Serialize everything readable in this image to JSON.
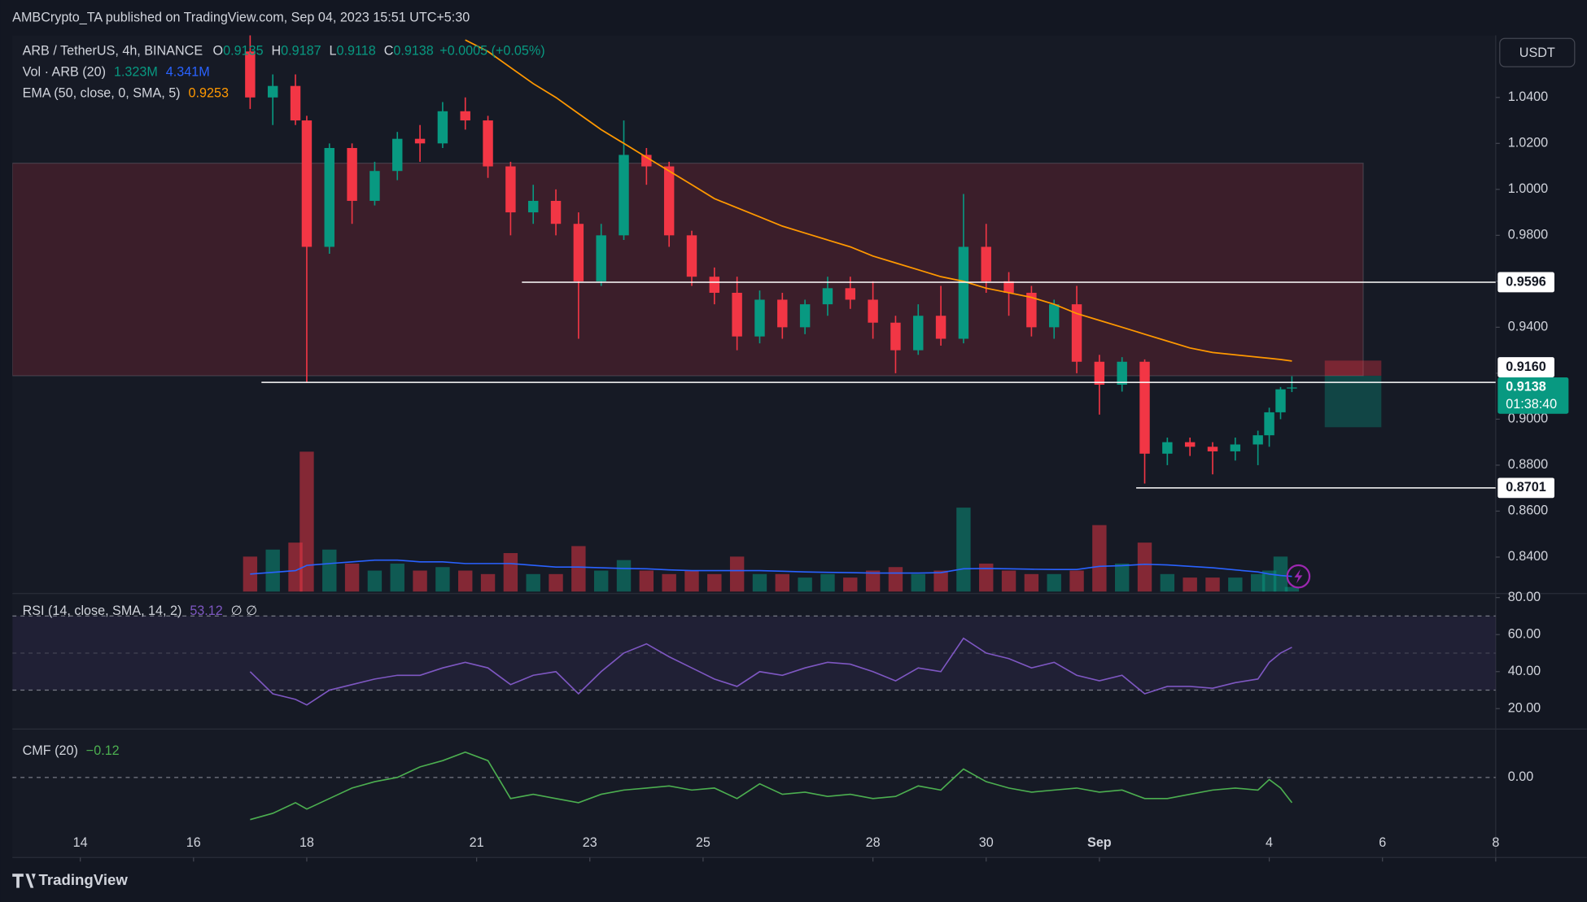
{
  "header": {
    "text": "AMBCrypto_TA published on TradingView.com, Sep 04, 2023 15:51 UTC+5:30"
  },
  "footer": {
    "logo": "TradingView"
  },
  "chart_data": {
    "type": "candlestick",
    "symbol": "ARB / TetherUS, 4h, BINANCE",
    "currency": "USDT",
    "ohlc_legend": {
      "open_label": "O",
      "open": 0.9135,
      "high_label": "H",
      "high": 0.9187,
      "low_label": "L",
      "low": 0.9118,
      "close_label": "C",
      "close": 0.9138,
      "change": "+0.0005 (+0.05%)"
    },
    "colors": {
      "up": "#089981",
      "down": "#f23645"
    },
    "xlim": [
      12.8,
      39
    ],
    "xticks": [
      14,
      16,
      18,
      21,
      23,
      25,
      28,
      30,
      {
        "value": 32,
        "label": "Sep"
      },
      {
        "value": 35,
        "label": "4"
      },
      {
        "value": 37,
        "label": "6"
      },
      {
        "value": 39,
        "label": "8"
      }
    ],
    "ylim": [
      0.825,
      1.067
    ],
    "yticks": [
      {
        "value": 1.04,
        "label": "1.0400"
      },
      {
        "value": 1.02,
        "label": "1.0200"
      },
      {
        "value": 1.0,
        "label": "1.0000"
      },
      {
        "value": 0.98,
        "label": "0.9800"
      },
      {
        "value": 0.96,
        "label": "0.9600"
      },
      {
        "value": 0.94,
        "label": "0.9400"
      },
      {
        "value": 0.92,
        "label": "0.9200"
      },
      {
        "value": 0.9,
        "label": "0.9000"
      },
      {
        "value": 0.88,
        "label": "0.8800"
      },
      {
        "value": 0.86,
        "label": "0.8600"
      },
      {
        "value": 0.84,
        "label": "0.8400"
      }
    ],
    "candles": [
      {
        "x": 17.0,
        "o": 1.06,
        "h": 1.067,
        "l": 1.035,
        "c": 1.04
      },
      {
        "x": 17.4,
        "o": 1.04,
        "h": 1.05,
        "l": 1.028,
        "c": 1.045
      },
      {
        "x": 17.8,
        "o": 1.045,
        "h": 1.05,
        "l": 1.028,
        "c": 1.03
      },
      {
        "x": 18.0,
        "o": 1.03,
        "h": 1.032,
        "l": 0.916,
        "c": 0.975
      },
      {
        "x": 18.4,
        "o": 0.975,
        "h": 1.02,
        "l": 0.972,
        "c": 1.018
      },
      {
        "x": 18.8,
        "o": 1.018,
        "h": 1.02,
        "l": 0.985,
        "c": 0.995
      },
      {
        "x": 19.2,
        "o": 0.995,
        "h": 1.012,
        "l": 0.993,
        "c": 1.008
      },
      {
        "x": 19.6,
        "o": 1.008,
        "h": 1.025,
        "l": 1.004,
        "c": 1.022
      },
      {
        "x": 20.0,
        "o": 1.022,
        "h": 1.028,
        "l": 1.012,
        "c": 1.02
      },
      {
        "x": 20.4,
        "o": 1.02,
        "h": 1.038,
        "l": 1.018,
        "c": 1.034
      },
      {
        "x": 20.8,
        "o": 1.034,
        "h": 1.04,
        "l": 1.026,
        "c": 1.03
      },
      {
        "x": 21.2,
        "o": 1.03,
        "h": 1.032,
        "l": 1.005,
        "c": 1.01
      },
      {
        "x": 21.6,
        "o": 1.01,
        "h": 1.012,
        "l": 0.98,
        "c": 0.99
      },
      {
        "x": 22.0,
        "o": 0.99,
        "h": 1.002,
        "l": 0.985,
        "c": 0.995
      },
      {
        "x": 22.4,
        "o": 0.995,
        "h": 1.0,
        "l": 0.98,
        "c": 0.985
      },
      {
        "x": 22.8,
        "o": 0.985,
        "h": 0.99,
        "l": 0.935,
        "c": 0.96
      },
      {
        "x": 23.2,
        "o": 0.96,
        "h": 0.985,
        "l": 0.958,
        "c": 0.98
      },
      {
        "x": 23.6,
        "o": 0.98,
        "h": 1.03,
        "l": 0.978,
        "c": 1.015
      },
      {
        "x": 24.0,
        "o": 1.015,
        "h": 1.018,
        "l": 1.002,
        "c": 1.01
      },
      {
        "x": 24.4,
        "o": 1.01,
        "h": 1.012,
        "l": 0.975,
        "c": 0.98
      },
      {
        "x": 24.8,
        "o": 0.98,
        "h": 0.982,
        "l": 0.958,
        "c": 0.962
      },
      {
        "x": 25.2,
        "o": 0.962,
        "h": 0.966,
        "l": 0.95,
        "c": 0.955
      },
      {
        "x": 25.6,
        "o": 0.955,
        "h": 0.962,
        "l": 0.93,
        "c": 0.936
      },
      {
        "x": 26.0,
        "o": 0.936,
        "h": 0.956,
        "l": 0.933,
        "c": 0.952
      },
      {
        "x": 26.4,
        "o": 0.952,
        "h": 0.955,
        "l": 0.935,
        "c": 0.94
      },
      {
        "x": 26.8,
        "o": 0.94,
        "h": 0.952,
        "l": 0.937,
        "c": 0.95
      },
      {
        "x": 27.2,
        "o": 0.95,
        "h": 0.962,
        "l": 0.945,
        "c": 0.957
      },
      {
        "x": 27.6,
        "o": 0.957,
        "h": 0.962,
        "l": 0.948,
        "c": 0.952
      },
      {
        "x": 28.0,
        "o": 0.952,
        "h": 0.96,
        "l": 0.935,
        "c": 0.942
      },
      {
        "x": 28.4,
        "o": 0.942,
        "h": 0.945,
        "l": 0.92,
        "c": 0.93
      },
      {
        "x": 28.8,
        "o": 0.93,
        "h": 0.95,
        "l": 0.928,
        "c": 0.945
      },
      {
        "x": 29.2,
        "o": 0.945,
        "h": 0.958,
        "l": 0.932,
        "c": 0.935
      },
      {
        "x": 29.6,
        "o": 0.935,
        "h": 0.998,
        "l": 0.933,
        "c": 0.975
      },
      {
        "x": 30.0,
        "o": 0.975,
        "h": 0.985,
        "l": 0.955,
        "c": 0.96
      },
      {
        "x": 30.4,
        "o": 0.96,
        "h": 0.964,
        "l": 0.945,
        "c": 0.955
      },
      {
        "x": 30.8,
        "o": 0.955,
        "h": 0.958,
        "l": 0.936,
        "c": 0.94
      },
      {
        "x": 31.2,
        "o": 0.94,
        "h": 0.952,
        "l": 0.935,
        "c": 0.95
      },
      {
        "x": 31.6,
        "o": 0.95,
        "h": 0.958,
        "l": 0.92,
        "c": 0.925
      },
      {
        "x": 32.0,
        "o": 0.925,
        "h": 0.928,
        "l": 0.902,
        "c": 0.915
      },
      {
        "x": 32.4,
        "o": 0.915,
        "h": 0.927,
        "l": 0.912,
        "c": 0.925
      },
      {
        "x": 32.8,
        "o": 0.925,
        "h": 0.926,
        "l": 0.872,
        "c": 0.885
      },
      {
        "x": 33.2,
        "o": 0.885,
        "h": 0.892,
        "l": 0.88,
        "c": 0.89
      },
      {
        "x": 33.6,
        "o": 0.89,
        "h": 0.892,
        "l": 0.884,
        "c": 0.888
      },
      {
        "x": 34.0,
        "o": 0.888,
        "h": 0.89,
        "l": 0.876,
        "c": 0.886
      },
      {
        "x": 34.4,
        "o": 0.886,
        "h": 0.892,
        "l": 0.882,
        "c": 0.889
      },
      {
        "x": 34.8,
        "o": 0.889,
        "h": 0.895,
        "l": 0.88,
        "c": 0.893
      },
      {
        "x": 35.0,
        "o": 0.893,
        "h": 0.905,
        "l": 0.888,
        "c": 0.903
      },
      {
        "x": 35.2,
        "o": 0.903,
        "h": 0.914,
        "l": 0.9,
        "c": 0.913
      },
      {
        "x": 35.4,
        "o": 0.9135,
        "h": 0.9187,
        "l": 0.9118,
        "c": 0.9138
      }
    ],
    "volume": {
      "name": "Vol · ARB (20)",
      "last": "1.323M",
      "ma_last": "4.341M",
      "ma_color": "#2962ff",
      "ylim": [
        0,
        48
      ],
      "values": [
        10,
        12,
        14,
        40,
        12,
        8,
        6,
        8,
        6,
        7,
        6,
        5,
        11,
        5,
        5,
        13,
        6,
        9,
        6,
        5,
        6,
        5,
        10,
        5,
        5,
        4,
        5,
        4,
        6,
        7,
        5,
        6,
        24,
        8,
        6,
        5,
        5,
        6,
        19,
        8,
        14,
        5,
        4,
        4,
        4,
        5,
        6,
        10,
        1.323
      ],
      "ma": [
        5,
        5.5,
        6,
        7.5,
        8,
        8.5,
        9,
        9,
        8.5,
        8.5,
        8,
        8,
        8,
        7.5,
        7,
        7,
        6.8,
        6.6,
        6.5,
        6.2,
        6,
        6,
        6,
        6,
        5.8,
        5.6,
        5.5,
        5.4,
        5.3,
        5.3,
        5.3,
        5.4,
        6.5,
        6.6,
        6.5,
        6.4,
        6.3,
        6.3,
        7.2,
        7.4,
        7.8,
        7.6,
        7.2,
        6.8,
        6.2,
        5.6,
        5,
        4.6,
        4.341
      ]
    },
    "ema": {
      "name": "EMA (50, close, 0, SMA, 5)",
      "last": 0.9253,
      "color": "#ff9800",
      "values": [
        null,
        null,
        null,
        null,
        null,
        null,
        null,
        null,
        null,
        null,
        1.065,
        1.06,
        1.053,
        1.046,
        1.04,
        1.033,
        1.026,
        1.02,
        1.014,
        1.008,
        1.002,
        0.996,
        0.992,
        0.988,
        0.984,
        0.981,
        0.978,
        0.975,
        0.971,
        0.968,
        0.965,
        0.962,
        0.96,
        0.957,
        0.955,
        0.953,
        0.95,
        0.946,
        0.943,
        0.94,
        0.937,
        0.934,
        0.931,
        0.929,
        0.928,
        0.927,
        0.9265,
        0.926,
        0.9253
      ]
    },
    "levels": [
      {
        "price": 0.9596,
        "from": 21.8
      },
      {
        "price": {
          "value": 0.916,
          "label": "0.9160"
        },
        "from": 17.2
      },
      {
        "price": 0.8701,
        "from": 32.65
      }
    ],
    "zone": {
      "top": 1.0114,
      "bottom": 0.9189,
      "to": 36.66
    },
    "position": {
      "from": 35.98,
      "to": 36.98,
      "stop": 0.9255,
      "entry": 0.9189,
      "target": 0.8965
    },
    "last_price": {
      "value": 0.9138,
      "countdown": "01:38:40"
    },
    "rsi": {
      "name": "RSI (14, close, SMA, 14, 2)",
      "last": 53.12,
      "extra": "∅ ∅",
      "color": "#7e57c2",
      "ylim": [
        9.5,
        80.5
      ],
      "yticks": [
        {
          "value": 80,
          "label": "80.00"
        },
        {
          "value": 60,
          "label": "60.00"
        },
        {
          "value": 40,
          "label": "40.00"
        },
        {
          "value": 20,
          "label": "20.00"
        }
      ],
      "bands": [
        70,
        50,
        30
      ],
      "values": [
        40,
        28,
        25,
        22,
        30,
        33,
        36,
        38,
        38,
        42,
        45,
        42,
        33,
        38,
        40,
        28,
        40,
        50,
        55,
        48,
        42,
        36,
        32,
        40,
        38,
        42,
        45,
        44,
        40,
        35,
        42,
        40,
        58,
        50,
        47,
        42,
        45,
        38,
        35,
        38,
        28,
        32,
        32,
        31,
        34,
        36,
        45,
        50,
        53.12
      ]
    },
    "cmf": {
      "name": "CMF (20)",
      "last": {
        "value": -0.12,
        "label": "−0.12"
      },
      "color": "#4caf50",
      "ylim": [
        -0.38,
        0.22
      ],
      "yticks": [
        {
          "value": 0,
          "label": "0.00"
        }
      ],
      "values": [
        -0.2,
        -0.17,
        -0.12,
        -0.15,
        -0.1,
        -0.05,
        -0.02,
        0,
        0.05,
        0.08,
        0.12,
        0.08,
        -0.1,
        -0.08,
        -0.1,
        -0.12,
        -0.08,
        -0.06,
        -0.05,
        -0.04,
        -0.06,
        -0.05,
        -0.1,
        -0.03,
        -0.08,
        -0.07,
        -0.09,
        -0.08,
        -0.1,
        -0.09,
        -0.04,
        -0.06,
        0.04,
        -0.02,
        -0.05,
        -0.07,
        -0.06,
        -0.05,
        -0.07,
        -0.06,
        -0.1,
        -0.1,
        -0.08,
        -0.06,
        -0.05,
        -0.06,
        -0.01,
        -0.05,
        -0.12
      ]
    }
  }
}
